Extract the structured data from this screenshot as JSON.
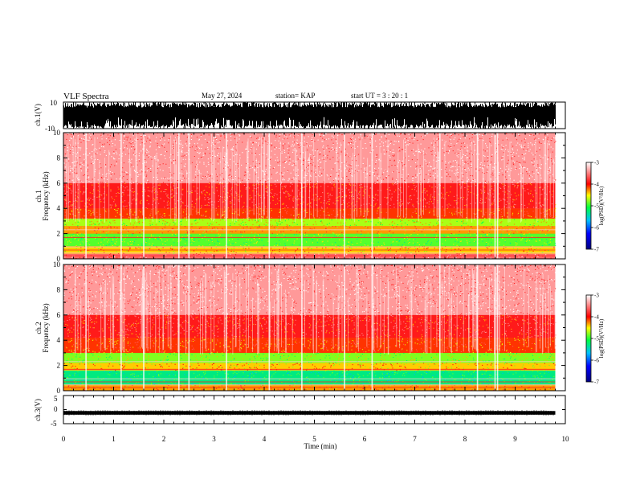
{
  "header": {
    "title": "VLF Spectra",
    "date": "May 27, 2024",
    "station": "station= KAP",
    "start": "start  UT  =   3  : 20 : 1"
  },
  "chart_data": [
    {
      "type": "line",
      "name": "ch1-waveform",
      "ylabel": "ch.1(V)",
      "ylim": [
        -10,
        10
      ],
      "yticks": [
        "10",
        "-10"
      ],
      "xlim": [
        0,
        10
      ],
      "description_values": {
        "envelope_max": 10,
        "envelope_min": -10,
        "data_end_min": 9.8
      }
    },
    {
      "type": "heatmap",
      "name": "ch1-spectrogram",
      "ylabel": "ch.1 Frequency (kHz)",
      "ylim": [
        0,
        10
      ],
      "yticks": [
        "0",
        "2",
        "4",
        "6",
        "8",
        "10"
      ],
      "xlim": [
        0,
        10
      ],
      "data_end_min": 9.8,
      "bands": [
        {
          "f_from": 0,
          "f_to": 0.4,
          "level": -3.6
        },
        {
          "f_from": 0.4,
          "f_to": 1.0,
          "level": -4.4
        },
        {
          "f_from": 1.0,
          "f_to": 2.0,
          "level": -4.9
        },
        {
          "f_from": 2.0,
          "f_to": 2.6,
          "level": -4.3
        },
        {
          "f_from": 2.6,
          "f_to": 3.2,
          "level": -4.7
        },
        {
          "f_from": 3.2,
          "f_to": 4.0,
          "level": -4.1
        },
        {
          "f_from": 4.0,
          "f_to": 6.0,
          "level": -3.9
        },
        {
          "f_from": 6.0,
          "f_to": 10.0,
          "level": -3.4
        }
      ],
      "vertical_streaks_min": [
        0.45,
        1.15,
        1.6,
        2.3,
        2.5,
        3.25,
        4.1,
        4.75,
        5.6,
        6.15,
        7.5,
        8.25,
        8.6,
        8.65
      ]
    },
    {
      "type": "heatmap",
      "name": "ch2-spectrogram",
      "ylabel": "ch.2 Frequency (kHz)",
      "ylim": [
        0,
        10
      ],
      "yticks": [
        "0",
        "2",
        "4",
        "6",
        "8",
        "10"
      ],
      "xlim": [
        0,
        10
      ],
      "data_end_min": 9.8,
      "bands": [
        {
          "f_from": 0,
          "f_to": 0.5,
          "level": -4.3
        },
        {
          "f_from": 0.5,
          "f_to": 1.6,
          "level": -5.3
        },
        {
          "f_from": 1.6,
          "f_to": 2.2,
          "level": -4.4
        },
        {
          "f_from": 2.2,
          "f_to": 3.0,
          "level": -4.8
        },
        {
          "f_from": 3.0,
          "f_to": 4.2,
          "level": -4.1
        },
        {
          "f_from": 4.2,
          "f_to": 6.0,
          "level": -3.9
        },
        {
          "f_from": 6.0,
          "f_to": 10.0,
          "level": -3.4
        }
      ],
      "vertical_streaks_min": [
        0.45,
        1.15,
        1.6,
        2.3,
        2.5,
        3.25,
        4.1,
        4.75,
        5.6,
        6.15,
        7.5,
        8.25,
        8.6,
        8.65
      ]
    },
    {
      "type": "line",
      "name": "ch3-waveform",
      "ylabel": "ch.3(V)",
      "ylim": [
        -5,
        5
      ],
      "yticks": [
        "5",
        "0",
        "-5"
      ],
      "xlim": [
        0,
        10
      ],
      "description_values": {
        "envelope_max": -0.5,
        "envelope_min": -1.8,
        "data_end_min": 9.8
      }
    }
  ],
  "xaxis": {
    "label": "Time  (min)",
    "ticks": [
      "0",
      "1",
      "2",
      "3",
      "4",
      "5",
      "6",
      "7",
      "8",
      "9",
      "10"
    ],
    "range": [
      0,
      10
    ]
  },
  "colorbar": {
    "label": "log(PSD)(V²/Hz)",
    "ticks": [
      "-3",
      "-4",
      "-5",
      "-6",
      "-7"
    ],
    "range": [
      -7,
      -3
    ],
    "colors": [
      "#000080",
      "#0000ff",
      "#00c0ff",
      "#00ff40",
      "#ffff00",
      "#ff0000",
      "#ffffff"
    ]
  }
}
